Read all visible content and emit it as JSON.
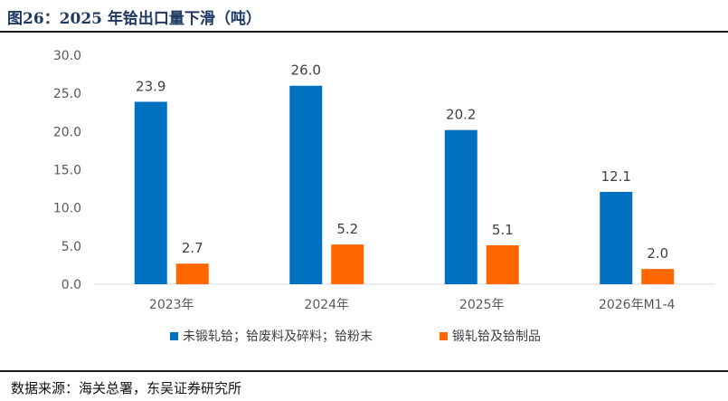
{
  "figure": {
    "title": "图26：2025 年铪出口量下滑（吨）",
    "source": "数据来源：海关总署，东吴证券研究所"
  },
  "chart_data": {
    "type": "bar",
    "title": "",
    "xlabel": "",
    "ylabel": "",
    "categories": [
      "2023年",
      "2024年",
      "2025年",
      "2026年M1-4"
    ],
    "series": [
      {
        "name": "未锻轧铪；铪废料及碎料；铪粉末",
        "values": [
          23.9,
          26.0,
          20.2,
          12.1
        ],
        "color": "#0070C0"
      },
      {
        "name": "锻轧铪及铪制品",
        "values": [
          2.7,
          5.2,
          5.1,
          2.0
        ],
        "color": "#FF6600"
      }
    ],
    "ylim": [
      0,
      30
    ],
    "yticks": [
      "0.0",
      "5.0",
      "10.0",
      "15.0",
      "20.0",
      "25.0",
      "30.0"
    ],
    "data_labels": true,
    "grid": false,
    "legend": "bottom"
  }
}
